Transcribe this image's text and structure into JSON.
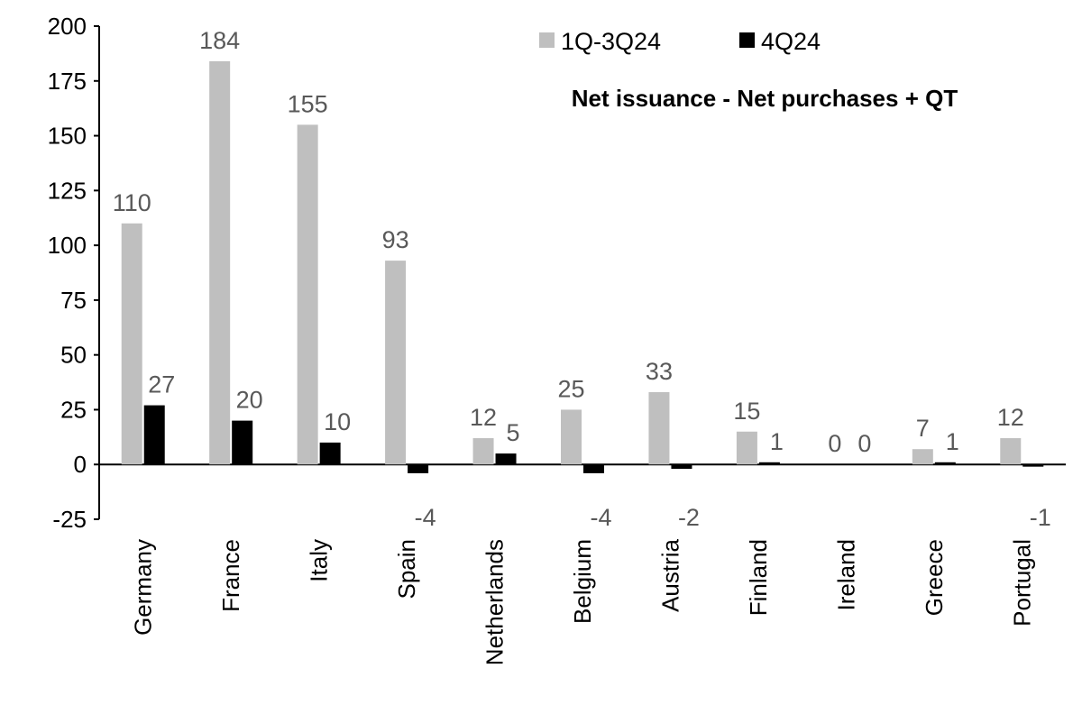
{
  "chart_data": {
    "type": "bar",
    "title": "Net issuance - Net purchases + QT",
    "categories": [
      "Germany",
      "France",
      "Italy",
      "Spain",
      "Netherlands",
      "Belgium",
      "Austria",
      "Finland",
      "Ireland",
      "Greece",
      "Portugal"
    ],
    "series": [
      {
        "name": "1Q-3Q24",
        "color": "#bfbfbf",
        "values": [
          110,
          184,
          155,
          93,
          12,
          25,
          33,
          15,
          0,
          7,
          12
        ]
      },
      {
        "name": "4Q24",
        "color": "#000000",
        "values": [
          27,
          20,
          10,
          -4,
          5,
          -4,
          -2,
          1,
          0,
          1,
          -1
        ]
      }
    ],
    "ylim": [
      -25,
      200
    ],
    "yticks": [
      -25,
      0,
      25,
      50,
      75,
      100,
      125,
      150,
      175,
      200
    ],
    "xlabel": "",
    "ylabel": "",
    "grid": false,
    "legend": "top-right"
  }
}
